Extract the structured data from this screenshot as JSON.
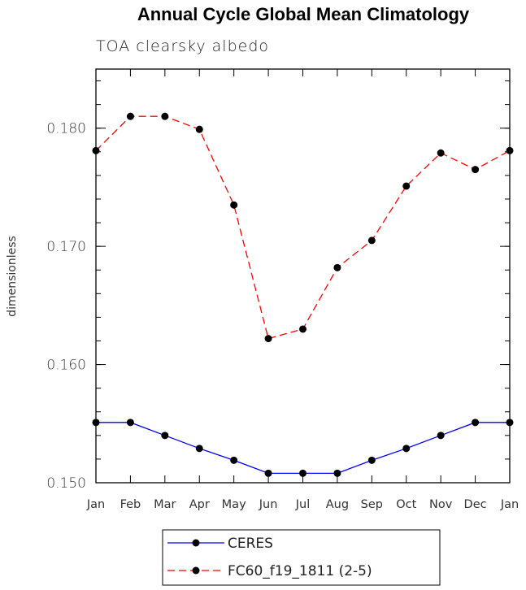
{
  "chart_data": {
    "type": "line",
    "title": "Annual Cycle Global Mean Climatology",
    "subtitle": "TOA clearsky albedo",
    "xlabel": "",
    "ylabel": "dimensionless",
    "categories": [
      "Jan",
      "Feb",
      "Mar",
      "Apr",
      "May",
      "Jun",
      "Jul",
      "Aug",
      "Sep",
      "Oct",
      "Nov",
      "Dec",
      "Jan"
    ],
    "ylim": [
      0.15,
      0.185
    ],
    "yticks": [
      "0.150",
      "0.160",
      "0.170",
      "0.180"
    ],
    "ytick_values": [
      0.15,
      0.16,
      0.17,
      0.18
    ],
    "legend_position": "bottom",
    "series": [
      {
        "name": "CERES",
        "color": "#0000ff",
        "dash": "solid",
        "values": [
          0.1551,
          0.1551,
          0.154,
          0.1529,
          0.1519,
          0.1508,
          0.1508,
          0.1508,
          0.1519,
          0.1529,
          0.154,
          0.1551,
          0.1551
        ]
      },
      {
        "name": "FC60_f19_1811 (2-5)",
        "color": "#ff0000",
        "dash": "dashed",
        "values": [
          0.1781,
          0.181,
          0.181,
          0.1799,
          0.1735,
          0.1622,
          0.163,
          0.1682,
          0.1705,
          0.1751,
          0.1779,
          0.1765,
          0.1781
        ]
      }
    ]
  }
}
